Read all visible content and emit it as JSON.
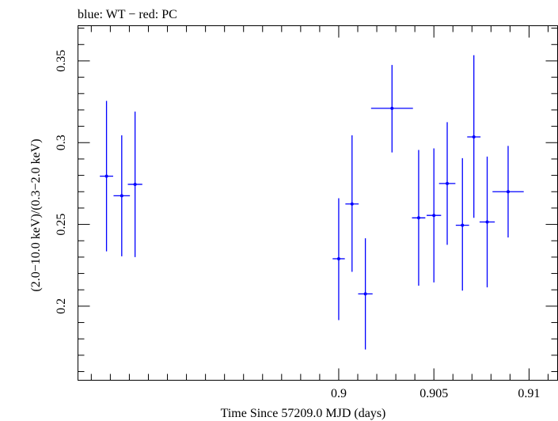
{
  "chart_data": {
    "type": "scatter",
    "title": "blue: WT − red: PC",
    "xlabel": "Time Since 57209.0 MJD (days)",
    "ylabel": "(2.0−10.0 keV)/(0.3−2.0 keV)",
    "xlim": [
      0.8863,
      0.9115
    ],
    "ylim": [
      0.1547,
      0.3715
    ],
    "x_ticks": [
      0.9,
      0.905,
      0.91
    ],
    "x_tick_labels": [
      "0.9",
      "0.905",
      "0.91"
    ],
    "y_ticks": [
      0.2,
      0.25,
      0.3,
      0.35
    ],
    "y_tick_labels": [
      "0.2",
      "0.25",
      "0.3",
      "0.35"
    ],
    "grid": false,
    "series": [
      {
        "name": "WT",
        "color": "#0000ff",
        "points": [
          {
            "x": 0.8878,
            "xerr": 0.00035,
            "y": 0.2795,
            "ylo": 0.2335,
            "yhi": 0.3255
          },
          {
            "x": 0.8886,
            "xerr": 0.00043,
            "y": 0.2675,
            "ylo": 0.2305,
            "yhi": 0.3045
          },
          {
            "x": 0.8893,
            "xerr": 0.00038,
            "y": 0.2745,
            "ylo": 0.23,
            "yhi": 0.319
          },
          {
            "x": 0.9,
            "xerr": 0.00032,
            "y": 0.229,
            "ylo": 0.1915,
            "yhi": 0.266
          },
          {
            "x": 0.9007,
            "xerr": 0.00035,
            "y": 0.2625,
            "ylo": 0.221,
            "yhi": 0.3045
          },
          {
            "x": 0.9014,
            "xerr": 0.00038,
            "y": 0.2075,
            "ylo": 0.1735,
            "yhi": 0.2415
          },
          {
            "x": 0.9028,
            "xerr": 0.0011,
            "y": 0.321,
            "ylo": 0.294,
            "yhi": 0.3475
          },
          {
            "x": 0.9042,
            "xerr": 0.00035,
            "y": 0.254,
            "ylo": 0.2125,
            "yhi": 0.2955
          },
          {
            "x": 0.905,
            "xerr": 0.00038,
            "y": 0.2555,
            "ylo": 0.2145,
            "yhi": 0.2965
          },
          {
            "x": 0.9057,
            "xerr": 0.00043,
            "y": 0.275,
            "ylo": 0.2375,
            "yhi": 0.3125
          },
          {
            "x": 0.9065,
            "xerr": 0.00035,
            "y": 0.2495,
            "ylo": 0.2095,
            "yhi": 0.2905
          },
          {
            "x": 0.9071,
            "xerr": 0.00035,
            "y": 0.3035,
            "ylo": 0.254,
            "yhi": 0.3535
          },
          {
            "x": 0.9078,
            "xerr": 0.0004,
            "y": 0.2515,
            "ylo": 0.2115,
            "yhi": 0.2915
          },
          {
            "x": 0.9089,
            "xerr": 0.00082,
            "y": 0.27,
            "ylo": 0.242,
            "yhi": 0.298
          }
        ]
      },
      {
        "name": "PC",
        "color": "#ff0000",
        "points": []
      }
    ]
  }
}
